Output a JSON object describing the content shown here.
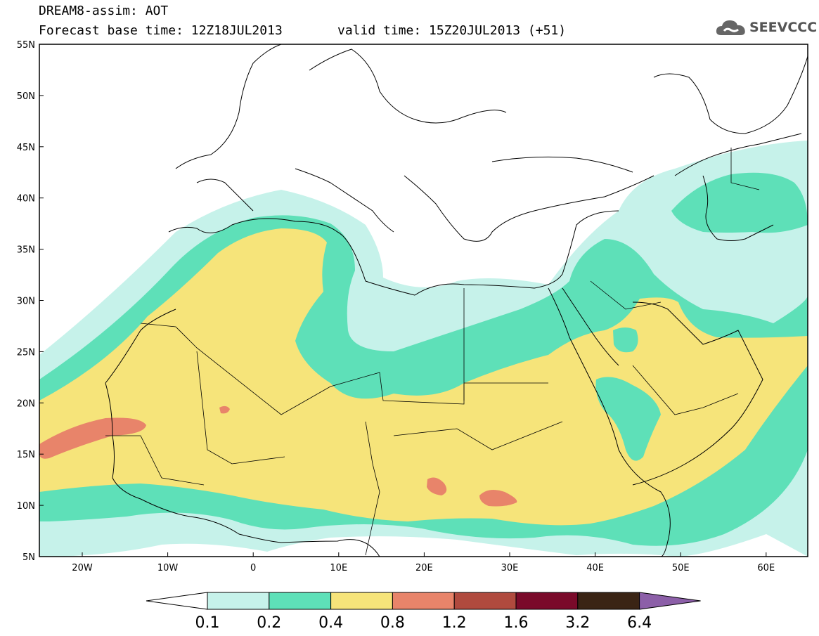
{
  "header": {
    "title": "DREAM8-assim: AOT",
    "base_time": "Forecast base time: 12Z18JUL2013",
    "valid_time": "valid time: 15Z20JUL2013 (+51)"
  },
  "logo": {
    "text": "SEEVCCC",
    "icon": "cloud-icon"
  },
  "map": {
    "lat_labels": [
      "55N",
      "50N",
      "45N",
      "40N",
      "35N",
      "30N",
      "25N",
      "20N",
      "15N",
      "10N",
      "5N"
    ],
    "lon_labels": [
      "20W",
      "10W",
      "0",
      "10E",
      "20E",
      "30E",
      "40E",
      "50E",
      "60E"
    ]
  },
  "colorbar": {
    "labels": [
      "0.1",
      "0.2",
      "0.4",
      "0.8",
      "1.2",
      "1.6",
      "3.2",
      "6.4"
    ],
    "colors": [
      "#ffffff",
      "#c6f2ea",
      "#5ee0b8",
      "#f6e47a",
      "#e8846a",
      "#b04a3e",
      "#7a0a2a",
      "#3a2414",
      "#8c5fa8"
    ]
  }
}
